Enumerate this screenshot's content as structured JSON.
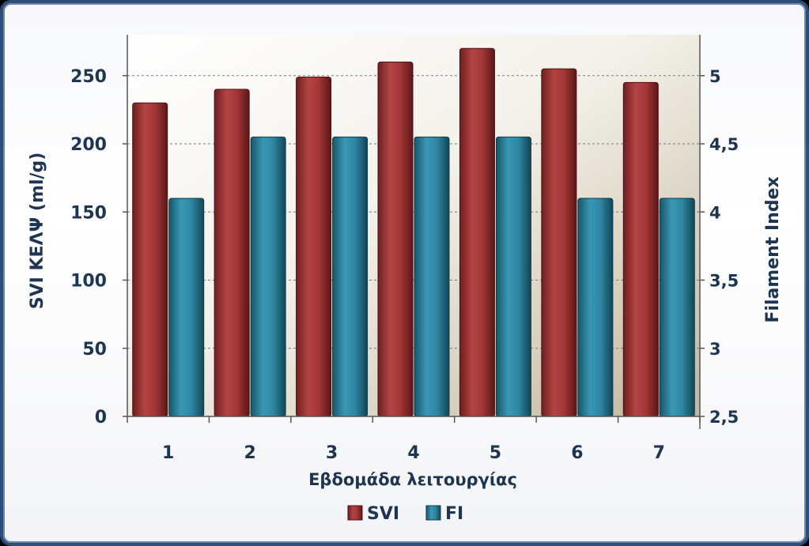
{
  "chart_data": {
    "type": "bar",
    "categories": [
      "1",
      "2",
      "3",
      "4",
      "5",
      "6",
      "7"
    ],
    "series": [
      {
        "name": "SVI",
        "axis": "left",
        "values": [
          230,
          240,
          249,
          260,
          270,
          255,
          245
        ],
        "color": "#a83838"
      },
      {
        "name": "FI",
        "axis": "right",
        "values": [
          4.1,
          4.55,
          4.55,
          4.55,
          4.55,
          4.1,
          4.1
        ],
        "color": "#2f8aa6"
      }
    ],
    "xlabel": "Εβδομάδα λειτουργίας",
    "ylabel": "SVI ΚΕΛΨ (ml/g)",
    "y2label": "Filament Index",
    "ylim": [
      0,
      280
    ],
    "yticks": [
      "0",
      "50",
      "100",
      "150",
      "200",
      "250"
    ],
    "y2lim": [
      2.5,
      5.3
    ],
    "y2ticks": [
      "2,5",
      "3",
      "3,5",
      "4",
      "4,5",
      "5"
    ],
    "grid": true,
    "legend": "bottom"
  }
}
